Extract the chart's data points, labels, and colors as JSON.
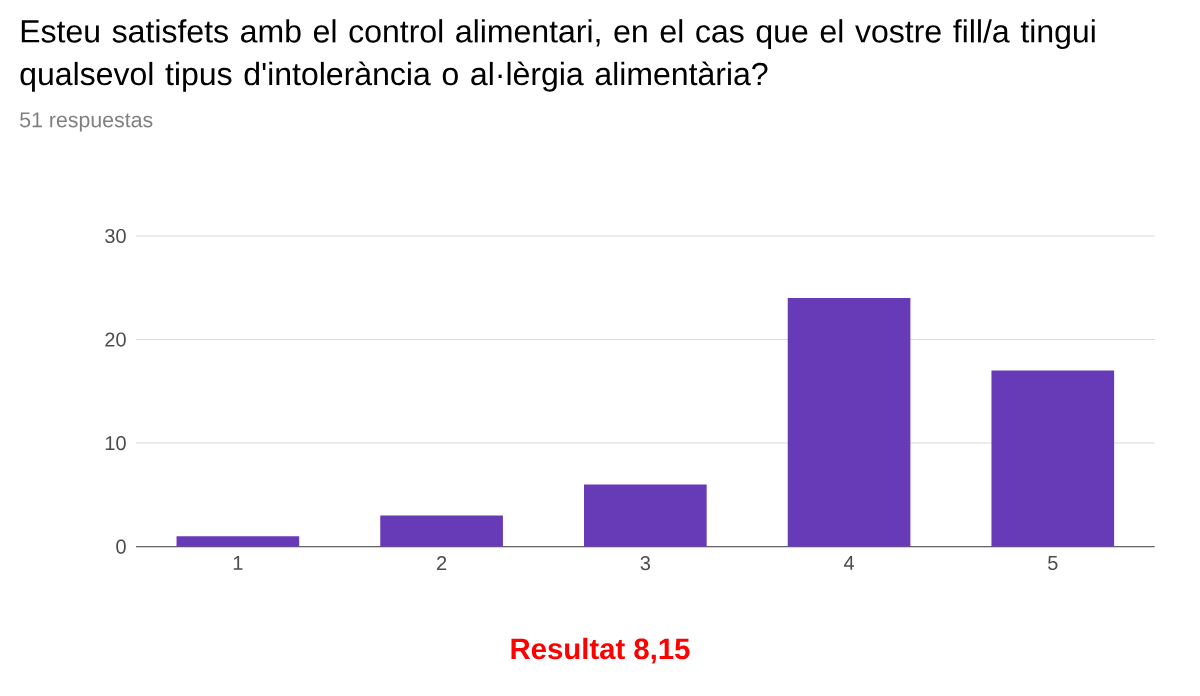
{
  "chart_data": {
    "type": "bar",
    "title": "Esteu satisfets amb el control alimentari, en el cas que el vostre fill/a tingui qualsevol tipus d'intolerància o al·lèrgia alimentària?",
    "subtitle": "51 respuestas",
    "categories": [
      "1",
      "2",
      "3",
      "4",
      "5"
    ],
    "values": [
      1,
      3,
      6,
      24,
      17
    ],
    "color": "#673ab7",
    "ylim": [
      0,
      30
    ],
    "yticks": [
      0,
      10,
      20,
      30
    ],
    "grid": "y",
    "annotations": [
      "**Resultat 8,15**"
    ]
  }
}
